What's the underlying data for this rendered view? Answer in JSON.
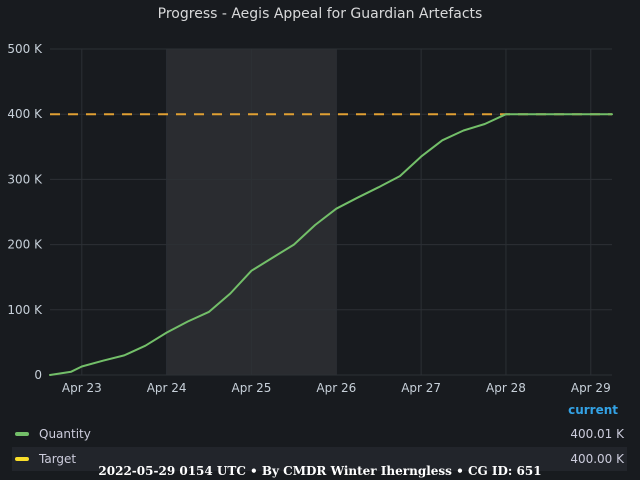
{
  "title": "Progress - Aegis Appeal for Guardian Artefacts",
  "footer": "2022-05-29 0154 UTC • By CMDR Winter Iherngless • CG ID: 651",
  "legend": {
    "header": "current",
    "items": [
      {
        "name": "Quantity",
        "value": "400.01 K",
        "color": "#73bf69"
      },
      {
        "name": "Target",
        "value": "400.00 K",
        "color": "#fade2a"
      }
    ]
  },
  "colors": {
    "background": "#181b1f",
    "grid": "#2c3035",
    "highlight": "#2a2c30",
    "quantity": "#73bf69",
    "target": "#e0a033"
  },
  "chart_data": {
    "type": "line",
    "title": "Progress - Aegis Appeal for Guardian Artefacts",
    "xlabel": "",
    "ylabel": "",
    "x_ticks": [
      "Apr 23",
      "Apr 24",
      "Apr 25",
      "Apr 26",
      "Apr 27",
      "Apr 28",
      "Apr 29"
    ],
    "y_ticks": [
      "0",
      "100 K",
      "200 K",
      "300 K",
      "400 K",
      "500 K"
    ],
    "xlim": [
      "2022-04-22T15:00",
      "2022-04-29T06:00"
    ],
    "ylim": [
      0,
      500000
    ],
    "grid": true,
    "legend_position": "bottom",
    "highlighted_range": [
      "2022-04-24T00:00",
      "2022-04-26T00:00"
    ],
    "series": [
      {
        "name": "Quantity",
        "x": [
          "2022-04-22T15:00",
          "2022-04-22T21:00",
          "2022-04-23T00:00",
          "2022-04-23T06:00",
          "2022-04-23T12:00",
          "2022-04-23T18:00",
          "2022-04-24T00:00",
          "2022-04-24T06:00",
          "2022-04-24T12:00",
          "2022-04-24T18:00",
          "2022-04-25T00:00",
          "2022-04-25T06:00",
          "2022-04-25T12:00",
          "2022-04-25T18:00",
          "2022-04-26T00:00",
          "2022-04-26T06:00",
          "2022-04-26T12:00",
          "2022-04-26T18:00",
          "2022-04-27T00:00",
          "2022-04-27T06:00",
          "2022-04-27T12:00",
          "2022-04-27T18:00",
          "2022-04-28T00:00",
          "2022-04-28T06:00",
          "2022-04-28T12:00",
          "2022-04-28T18:00",
          "2022-04-29T00:00",
          "2022-04-29T06:00"
        ],
        "values": [
          0,
          5000,
          13000,
          22000,
          30000,
          45000,
          65000,
          82000,
          97000,
          125000,
          160000,
          180000,
          200000,
          230000,
          255000,
          272000,
          288000,
          305000,
          335000,
          360000,
          375000,
          385000,
          400010,
          400010,
          400010,
          400010,
          400010,
          400010
        ]
      },
      {
        "name": "Target",
        "x": [
          "2022-04-22T15:00",
          "2022-04-29T06:00"
        ],
        "values": [
          400000,
          400000
        ]
      }
    ]
  }
}
